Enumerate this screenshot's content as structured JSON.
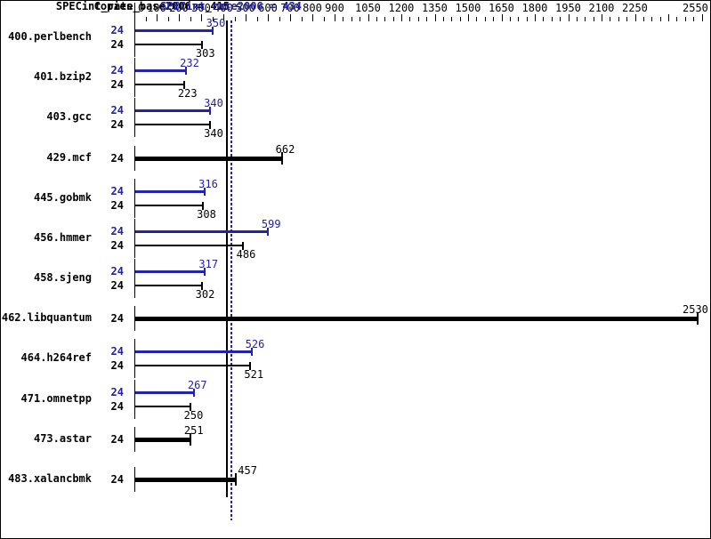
{
  "chart_data": {
    "type": "bar",
    "orientation": "horizontal",
    "copies_header": "Copies",
    "colors": {
      "peak": "#2222aa",
      "base": "#000000"
    },
    "xaxis": {
      "min": 0,
      "max": 2550,
      "labeled_ticks": [
        0,
        100,
        200,
        300,
        400,
        500,
        600,
        700,
        800,
        900,
        1050,
        1200,
        1350,
        1500,
        1650,
        1800,
        1950,
        2100,
        2250,
        2550
      ],
      "unlabeled_major_ticks": [
        2400
      ],
      "minor_tick_step_below_900": 50,
      "minor_tick_step_above_900": 37.5
    },
    "benchmarks": [
      {
        "name": "400.perlbench",
        "copies": 24,
        "peak": 350,
        "base": 303,
        "single_bar": false
      },
      {
        "name": "401.bzip2",
        "copies": 24,
        "peak": 232,
        "base": 223,
        "single_bar": false
      },
      {
        "name": "403.gcc",
        "copies": 24,
        "peak": 340,
        "base": 340,
        "single_bar": false
      },
      {
        "name": "429.mcf",
        "copies": 24,
        "peak": 662,
        "base": 662,
        "single_bar": true
      },
      {
        "name": "445.gobmk",
        "copies": 24,
        "peak": 316,
        "base": 308,
        "single_bar": false
      },
      {
        "name": "456.hmmer",
        "copies": 24,
        "peak": 599,
        "base": 486,
        "single_bar": false
      },
      {
        "name": "458.sjeng",
        "copies": 24,
        "peak": 317,
        "base": 302,
        "single_bar": false
      },
      {
        "name": "462.libquantum",
        "copies": 24,
        "peak": 2530,
        "base": 2530,
        "single_bar": true
      },
      {
        "name": "464.h264ref",
        "copies": 24,
        "peak": 526,
        "base": 521,
        "single_bar": false
      },
      {
        "name": "471.omnetpp",
        "copies": 24,
        "peak": 267,
        "base": 250,
        "single_bar": false
      },
      {
        "name": "473.astar",
        "copies": 24,
        "peak": 251,
        "base": 251,
        "single_bar": true
      },
      {
        "name": "483.xalancbmk",
        "copies": 24,
        "peak": 457,
        "base": 457,
        "single_bar": true
      }
    ],
    "results": {
      "base_text": "SPECint_rate_base2006 = 415",
      "base_value": 415,
      "peak_text": "SPECint_rate2006 = 434",
      "peak_value": 434
    }
  }
}
